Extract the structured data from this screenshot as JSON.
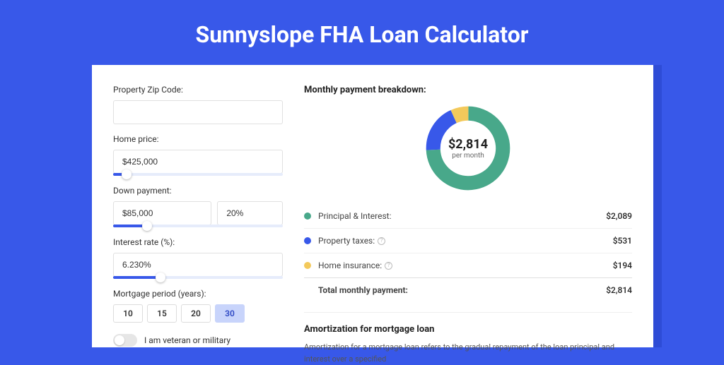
{
  "page_title": "Sunnyslope FHA Loan Calculator",
  "colors": {
    "page_bg": "#3858e9",
    "card_bg": "#ffffff",
    "card_shadow": "#2e4cd6",
    "primary": "#3858e9"
  },
  "form": {
    "zip": {
      "label": "Property Zip Code:",
      "value": ""
    },
    "home_price": {
      "label": "Home price:",
      "value": "$425,000",
      "slider_pct": 8
    },
    "down_payment": {
      "label": "Down payment:",
      "amount": "$85,000",
      "percent": "20%",
      "slider_pct": 20
    },
    "interest_rate": {
      "label": "Interest rate (%):",
      "value": "6.230%",
      "slider_pct": 28
    },
    "mortgage_period": {
      "label": "Mortgage period (years):",
      "options": [
        "10",
        "15",
        "20",
        "30"
      ],
      "selected": "30"
    },
    "veteran": {
      "label": "I am veteran or military",
      "checked": false
    }
  },
  "breakdown": {
    "title": "Monthly payment breakdown:",
    "center_amount": "$2,814",
    "center_sub": "per month",
    "donut": {
      "slices": [
        {
          "key": "principal_interest",
          "value": 2089,
          "color": "#48a88a",
          "pct": 74.2
        },
        {
          "key": "property_taxes",
          "value": 531,
          "color": "#3858e9",
          "pct": 18.9
        },
        {
          "key": "home_insurance",
          "value": 194,
          "color": "#f3c95b",
          "pct": 6.9
        }
      ],
      "ring_width": 20
    },
    "rows": [
      {
        "dot_color": "#48a88a",
        "label": "Principal & Interest:",
        "info": false,
        "value": "$2,089"
      },
      {
        "dot_color": "#3858e9",
        "label": "Property taxes:",
        "info": true,
        "value": "$531"
      },
      {
        "dot_color": "#f3c95b",
        "label": "Home insurance:",
        "info": true,
        "value": "$194"
      }
    ],
    "total": {
      "label": "Total monthly payment:",
      "value": "$2,814"
    }
  },
  "amortization": {
    "title": "Amortization for mortgage loan",
    "text": "Amortization for a mortgage loan refers to the gradual repayment of the loan principal and interest over a specified"
  }
}
